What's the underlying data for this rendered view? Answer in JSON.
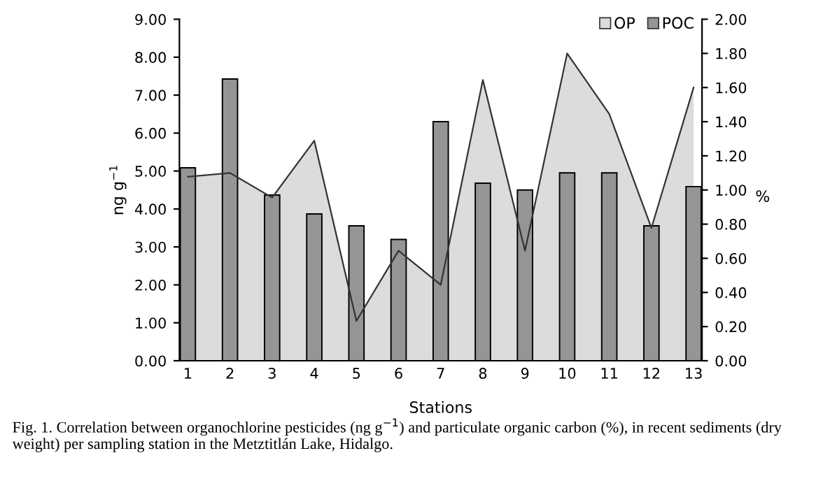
{
  "chart_data": {
    "type": "bar",
    "categories": [
      "1",
      "2",
      "3",
      "4",
      "5",
      "6",
      "7",
      "8",
      "9",
      "10",
      "11",
      "12",
      "13"
    ],
    "xlabel": "Stations",
    "ylabel": "ng g$^{−1}$",
    "y2label": "%",
    "ylim": [
      0,
      9
    ],
    "yticks": [
      {
        "value": 0,
        "label": "0.00"
      },
      {
        "value": 1,
        "label": "1.00"
      },
      {
        "value": 2,
        "label": "2.00"
      },
      {
        "value": 3,
        "label": "3.00"
      },
      {
        "value": 4,
        "label": "4.00"
      },
      {
        "value": 5,
        "label": "5.00"
      },
      {
        "value": 6,
        "label": "6.00"
      },
      {
        "value": 7,
        "label": "7.00"
      },
      {
        "value": 8,
        "label": "8.00"
      },
      {
        "value": 9,
        "label": "9.00"
      }
    ],
    "y2lim": [
      0,
      2
    ],
    "y2ticks": [
      {
        "value": 0,
        "label": "0.00"
      },
      {
        "value": 0.2,
        "label": "0.20"
      },
      {
        "value": 0.4,
        "label": "0.40"
      },
      {
        "value": 0.6,
        "label": "0.60"
      },
      {
        "value": 0.8,
        "label": "0.80"
      },
      {
        "value": 1,
        "label": "1.00"
      },
      {
        "value": 1.2,
        "label": "1.20"
      },
      {
        "value": 1.4,
        "label": "1.40"
      },
      {
        "value": 1.6,
        "label": "1.60"
      },
      {
        "value": 1.8,
        "label": "1.80"
      },
      {
        "value": 2,
        "label": "2.00"
      }
    ],
    "series": [
      {
        "name": "OP",
        "type": "area",
        "color": "#dcdcdc",
        "values": [
          4.85,
          4.95,
          4.3,
          5.8,
          1.05,
          2.9,
          2.0,
          7.4,
          2.9,
          8.1,
          6.5,
          3.5,
          7.2
        ]
      },
      {
        "name": "POC",
        "axis": "y2",
        "color": "#959595",
        "values": [
          1.13,
          1.65,
          0.97,
          0.86,
          0.79,
          0.71,
          1.4,
          1.04,
          1.0,
          1.1,
          1.1,
          0.79,
          1.02
        ]
      }
    ],
    "legend": "top right",
    "grid": false,
    "annotations": [
      "Fig. 1. Correlation between organochlorine pesticides (ng g$^{−1}$) and particulate organic carbon (%), in recent sediments (dry weight) per sampling station in the Metztitlán Lake, Hidalgo."
    ]
  }
}
